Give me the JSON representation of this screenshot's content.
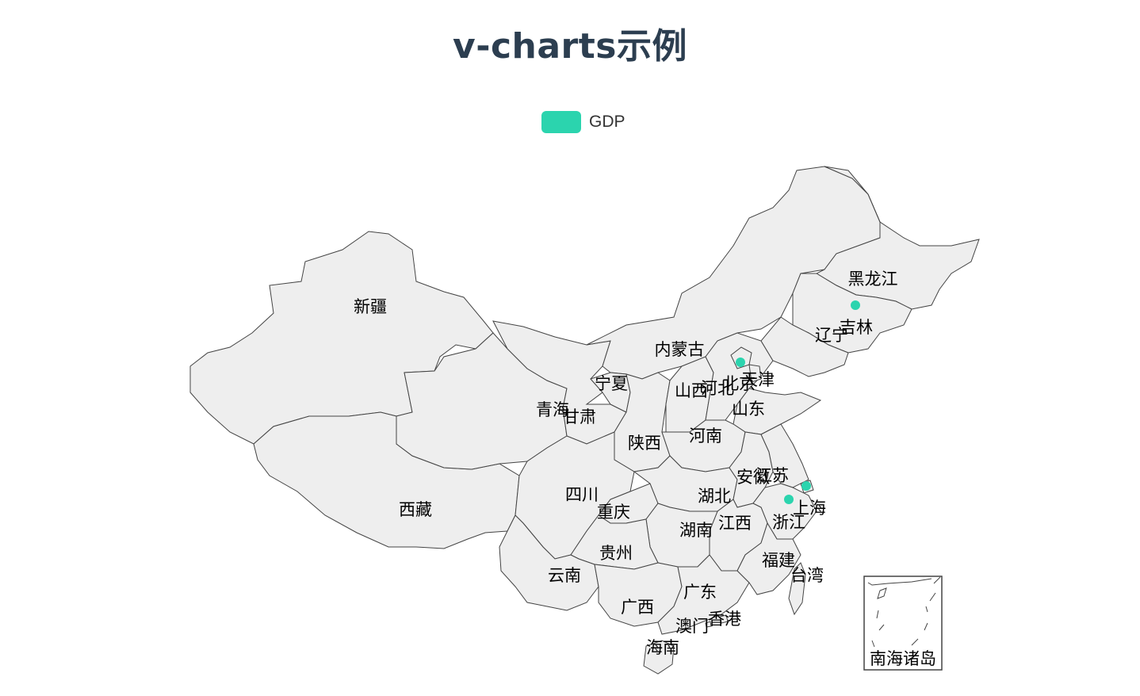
{
  "title": "v-charts示例",
  "legend": {
    "label": "GDP",
    "color": "#2bd4ae"
  },
  "map": {
    "fill_color": "#eeeeee",
    "border_color": "#444444",
    "provinces": [
      {
        "id": "xinjiang",
        "name": "新疆"
      },
      {
        "id": "xizang",
        "name": "西藏"
      },
      {
        "id": "qinghai",
        "name": "青海"
      },
      {
        "id": "gansu",
        "name": "甘肃"
      },
      {
        "id": "neimenggu",
        "name": "内蒙古"
      },
      {
        "id": "ningxia",
        "name": "宁夏"
      },
      {
        "id": "shaanxi",
        "name": "陕西"
      },
      {
        "id": "shanxi",
        "name": "山西"
      },
      {
        "id": "hebei",
        "name": "河北"
      },
      {
        "id": "beijing",
        "name": "北京"
      },
      {
        "id": "tianjin",
        "name": "天津"
      },
      {
        "id": "heilongjiang",
        "name": "黑龙江"
      },
      {
        "id": "jilin",
        "name": "吉林"
      },
      {
        "id": "liaoning",
        "name": "辽宁"
      },
      {
        "id": "shandong",
        "name": "山东"
      },
      {
        "id": "henan",
        "name": "河南"
      },
      {
        "id": "sichuan",
        "name": "四川"
      },
      {
        "id": "chongqing",
        "name": "重庆"
      },
      {
        "id": "hubei",
        "name": "湖北"
      },
      {
        "id": "anhui",
        "name": "安徽"
      },
      {
        "id": "jiangsu",
        "name": "江苏"
      },
      {
        "id": "shanghai",
        "name": "上海"
      },
      {
        "id": "zhejiang",
        "name": "浙江"
      },
      {
        "id": "jiangxi",
        "name": "江西"
      },
      {
        "id": "hunan",
        "name": "湖南"
      },
      {
        "id": "guizhou",
        "name": "贵州"
      },
      {
        "id": "yunnan",
        "name": "云南"
      },
      {
        "id": "guangxi",
        "name": "广西"
      },
      {
        "id": "guangdong",
        "name": "广东"
      },
      {
        "id": "fujian",
        "name": "福建"
      },
      {
        "id": "taiwan",
        "name": "台湾"
      },
      {
        "id": "hongkong",
        "name": "香港"
      },
      {
        "id": "macau",
        "name": "澳门"
      },
      {
        "id": "hainan",
        "name": "海南"
      }
    ],
    "inset_label": "南海诸岛",
    "gdp_points": [
      {
        "id": "beijing-point",
        "city": "北京"
      },
      {
        "id": "changchun-point",
        "city": "吉林"
      },
      {
        "id": "shanghai-point",
        "city": "上海"
      },
      {
        "id": "hangzhou-point",
        "city": "浙江"
      }
    ]
  }
}
